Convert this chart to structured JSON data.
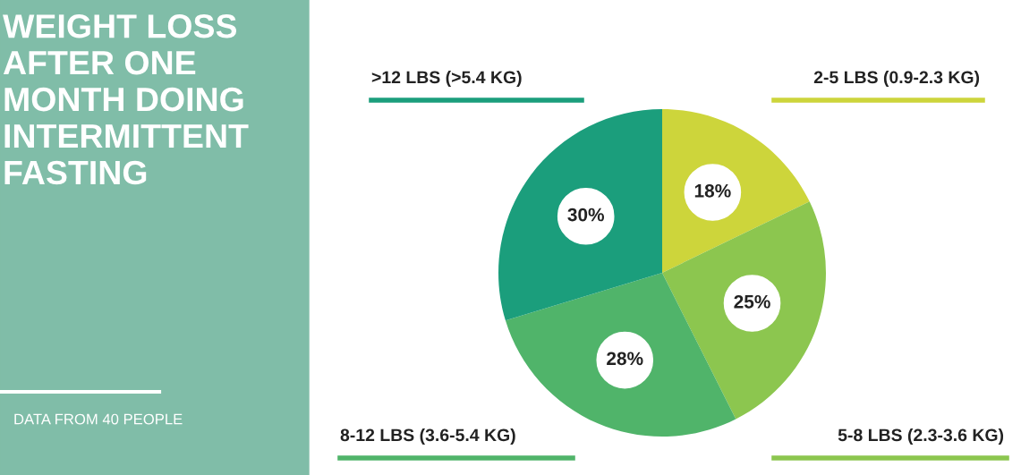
{
  "chart_data": {
    "type": "pie",
    "title": "WEIGHT LOSS AFTER ONE MONTH DOING INTERMITTENT FASTING",
    "categories": [
      "2-5 LBS (0.9-2.3 KG)",
      "5-8 LBS (2.3-3.6 KG)",
      "8-12 LBS (3.6-5.4 KG)",
      ">12 LBS (>5.4 KG)"
    ],
    "values": [
      18,
      25,
      28,
      30
    ],
    "value_labels": [
      "18%",
      "25%",
      "28%",
      "30%"
    ],
    "colors": [
      "#cdd53b",
      "#8cc64f",
      "#50b46a",
      "#1b9e7c"
    ],
    "annotations": [
      "DATA FROM 40 PEOPLE"
    ]
  }
}
